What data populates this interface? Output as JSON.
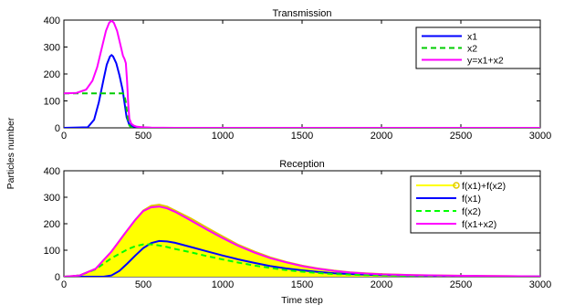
{
  "figure": {
    "ylabel": "Particles number"
  },
  "chart_data": [
    {
      "type": "line",
      "title": "Transmission",
      "xlabel": "",
      "ylabel": "Particles number",
      "xlim": [
        0,
        3000
      ],
      "ylim": [
        0,
        400
      ],
      "xticks": [
        0,
        500,
        1000,
        1500,
        2000,
        2500,
        3000
      ],
      "yticks": [
        0,
        100,
        200,
        300,
        400
      ],
      "grid": false,
      "legend_position": "top-right",
      "series": [
        {
          "name": "x1",
          "color": "#0000ff",
          "dash": "solid",
          "x": [
            0,
            150,
            190,
            220,
            250,
            270,
            290,
            300,
            310,
            330,
            350,
            370,
            385,
            395,
            410,
            430,
            460,
            500,
            550,
            700,
            1000,
            3000
          ],
          "y": [
            0,
            2,
            30,
            95,
            180,
            235,
            265,
            270,
            265,
            240,
            195,
            140,
            80,
            40,
            15,
            6,
            3,
            1,
            0,
            0,
            0,
            0
          ]
        },
        {
          "name": "x2",
          "color": "#00cc00",
          "dash": "dashed",
          "x": [
            0,
            370,
            380,
            390,
            400,
            410,
            420,
            430,
            450
          ],
          "y": [
            128,
            128,
            125,
            95,
            45,
            12,
            3,
            0,
            0
          ]
        },
        {
          "name": "y=x1+x2",
          "color": "#ff00ff",
          "dash": "solid",
          "x": [
            0,
            80,
            140,
            180,
            210,
            240,
            265,
            285,
            300,
            315,
            335,
            355,
            372,
            382,
            390,
            398,
            405,
            412,
            425,
            440,
            460,
            500,
            550,
            700,
            1000,
            3000
          ],
          "y": [
            128,
            130,
            142,
            175,
            225,
            300,
            360,
            390,
            398,
            390,
            360,
            310,
            268,
            255,
            240,
            170,
            90,
            35,
            15,
            8,
            4,
            2,
            1,
            0,
            0,
            0
          ]
        }
      ]
    },
    {
      "type": "line",
      "title": "Reception",
      "xlabel": "Time step",
      "ylabel": "Particles number",
      "xlim": [
        0,
        3000
      ],
      "ylim": [
        0,
        400
      ],
      "xticks": [
        0,
        500,
        1000,
        1500,
        2000,
        2500,
        3000
      ],
      "yticks": [
        0,
        100,
        200,
        300,
        400
      ],
      "grid": false,
      "legend_position": "top-right",
      "series": [
        {
          "name": "f(x1)+f(x2)",
          "color": "#ffff00",
          "dash": "solid",
          "marker": "circle",
          "filled": true,
          "x": [
            0,
            100,
            200,
            300,
            380,
            450,
            500,
            550,
            600,
            650,
            700,
            800,
            900,
            1000,
            1100,
            1200,
            1300,
            1400,
            1500,
            1600,
            1700,
            1800,
            1900,
            2000,
            2200,
            2400,
            2600,
            2800,
            3000
          ],
          "y": [
            0,
            5,
            30,
            95,
            160,
            215,
            250,
            268,
            272,
            265,
            250,
            220,
            185,
            152,
            120,
            95,
            73,
            56,
            42,
            31,
            23,
            17,
            13,
            10,
            6,
            4,
            3,
            2,
            1
          ]
        },
        {
          "name": "f(x1)",
          "color": "#0000ff",
          "dash": "solid",
          "x": [
            0,
            250,
            300,
            350,
            400,
            450,
            500,
            550,
            600,
            650,
            700,
            800,
            900,
            1000,
            1100,
            1200,
            1300,
            1400,
            1500,
            1600,
            1700,
            1800,
            1900,
            2000,
            2200,
            2400,
            2600,
            2800,
            3000
          ],
          "y": [
            0,
            0,
            5,
            22,
            50,
            80,
            108,
            127,
            135,
            133,
            128,
            112,
            96,
            80,
            65,
            52,
            40,
            31,
            24,
            18,
            13,
            10,
            8,
            6,
            4,
            3,
            2,
            1,
            1
          ]
        },
        {
          "name": "f(x2)",
          "color": "#00ff00",
          "dash": "dashed",
          "x": [
            0,
            100,
            200,
            300,
            400,
            450,
            500,
            550,
            600,
            650,
            700,
            800,
            900,
            1000,
            1100,
            1200,
            1300,
            1400,
            1500,
            1600,
            1700,
            1800,
            1900,
            2000,
            2200,
            2400,
            2600,
            2800,
            3000
          ],
          "y": [
            0,
            5,
            28,
            70,
            103,
            115,
            122,
            122,
            118,
            112,
            105,
            92,
            78,
            65,
            53,
            42,
            33,
            25,
            19,
            14,
            10,
            8,
            6,
            5,
            3,
            2,
            1,
            1,
            0
          ]
        },
        {
          "name": "f(x1+x2)",
          "color": "#ff00ff",
          "dash": "solid",
          "x": [
            0,
            100,
            200,
            300,
            380,
            450,
            500,
            550,
            600,
            650,
            700,
            800,
            900,
            1000,
            1100,
            1200,
            1300,
            1400,
            1500,
            1600,
            1700,
            1800,
            1900,
            2000,
            2200,
            2400,
            2600,
            2800,
            3000
          ],
          "y": [
            0,
            5,
            30,
            95,
            160,
            215,
            248,
            262,
            265,
            258,
            245,
            212,
            178,
            146,
            116,
            91,
            70,
            54,
            40,
            30,
            22,
            16,
            12,
            9,
            6,
            4,
            3,
            2,
            1
          ]
        }
      ]
    }
  ]
}
